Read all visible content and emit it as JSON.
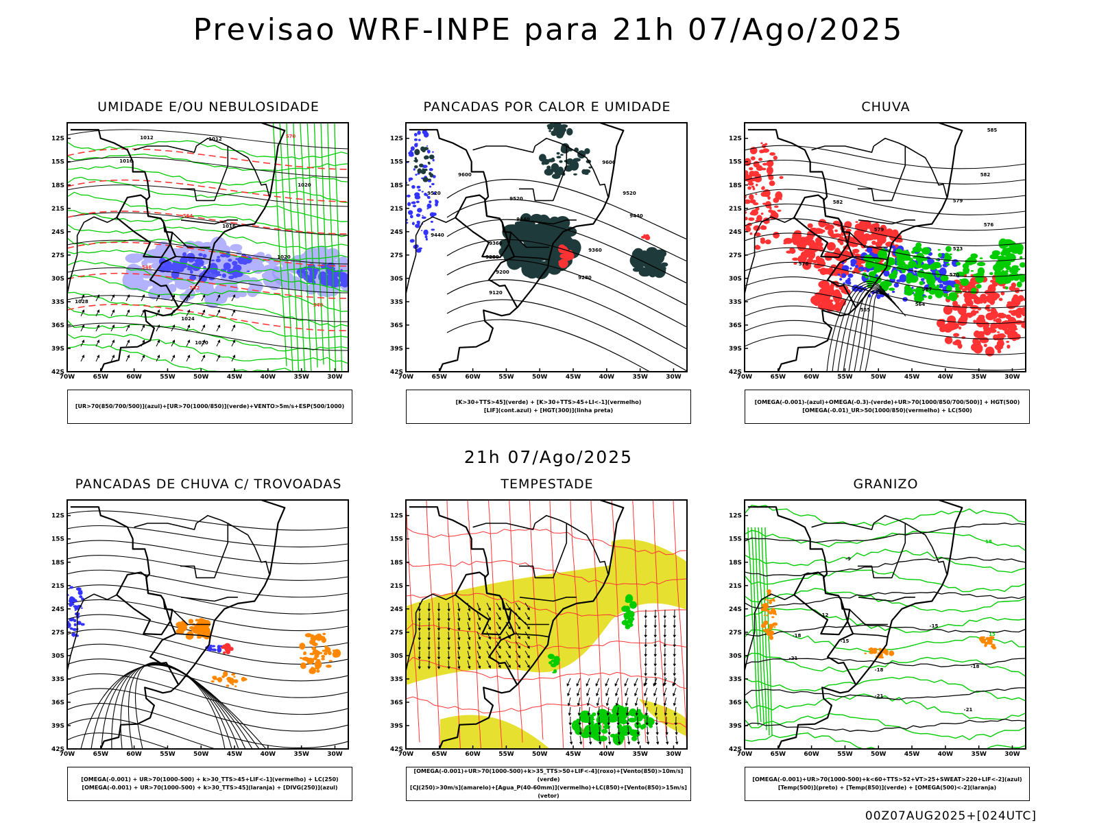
{
  "title": "Previsao WRF-INPE  para 21h 07/Ago/2025",
  "mid_title": "21h 07/Ago/2025",
  "footer": "00Z07AUG2025+[024UTC]",
  "axes": {
    "lat_labels": [
      "12S",
      "15S",
      "18S",
      "21S",
      "24S",
      "27S",
      "30S",
      "33S",
      "36S",
      "39S",
      "42S"
    ],
    "lon_labels": [
      "70W",
      "65W",
      "60W",
      "55W",
      "50W",
      "45W",
      "40W",
      "35W",
      "30W"
    ]
  },
  "colors": {
    "green": "#00cc00",
    "blue": "#3333ff",
    "light_blue": "#9999ff",
    "red": "#ff3333",
    "dark_teal": "#1e3a3a",
    "orange": "#ff8800",
    "yellow": "#e6e030",
    "black": "#000000"
  },
  "panels": [
    {
      "title": "UMIDADE E/OU NEBULOSIDADE",
      "legend": [
        "[UR>70(850/700/500)](azul)+[UR>70(1000/850)](verde)+VENTO>5m/s+ESP(500/1000)"
      ],
      "contour_labels": [
        {
          "text": "1012",
          "color": "#000"
        },
        {
          "text": "1012",
          "color": "#000"
        },
        {
          "text": "1016",
          "color": "#000"
        },
        {
          "text": "1020",
          "color": "#000"
        },
        {
          "text": "1016",
          "color": "#000"
        },
        {
          "text": "1020",
          "color": "#000"
        },
        {
          "text": "1024",
          "color": "#000"
        },
        {
          "text": "1028",
          "color": "#000"
        },
        {
          "text": "1020",
          "color": "#000"
        },
        {
          "text": "570",
          "color": "#ff3333"
        },
        {
          "text": "564",
          "color": "#ff3333"
        },
        {
          "text": "546",
          "color": "#ff3333"
        },
        {
          "text": "552",
          "color": "#ff3333"
        },
        {
          "text": "540",
          "color": "#ff3333"
        }
      ]
    },
    {
      "title": "PANCADAS POR CALOR E UMIDADE",
      "legend": [
        "[K>30+TTS>45](verde) + [K>30+TTS>45+LI<-1](vermelho)",
        "[LIF](cont.azul) + [HGT(300)](linha preta)"
      ],
      "contour_labels": [
        {
          "text": "9600",
          "color": "#000"
        },
        {
          "text": "9600",
          "color": "#000"
        },
        {
          "text": "9520",
          "color": "#000"
        },
        {
          "text": "9520",
          "color": "#000"
        },
        {
          "text": "9440",
          "color": "#000"
        },
        {
          "text": "9440",
          "color": "#000"
        },
        {
          "text": "9360",
          "color": "#000"
        },
        {
          "text": "9280",
          "color": "#000"
        },
        {
          "text": "9200",
          "color": "#000"
        },
        {
          "text": "9120",
          "color": "#000"
        },
        {
          "text": "9360",
          "color": "#000"
        },
        {
          "text": "9280",
          "color": "#000"
        },
        {
          "text": "9520",
          "color": "#000"
        },
        {
          "text": "9440",
          "color": "#000"
        }
      ]
    },
    {
      "title": "CHUVA",
      "legend": [
        "[OMEGA(-0.001)-(azul)+OMEGA(-0.3)-(verde)+UR>70(1000/850/700/500)] + HGT(500)",
        "[OMEGA(-0.01)_UR>50(1000/850)(vermelho) + LC(500)"
      ],
      "contour_labels": [
        {
          "text": "585",
          "color": "#000"
        },
        {
          "text": "582",
          "color": "#000"
        },
        {
          "text": "579",
          "color": "#000"
        },
        {
          "text": "576",
          "color": "#000"
        },
        {
          "text": "573",
          "color": "#000"
        },
        {
          "text": "570",
          "color": "#000"
        },
        {
          "text": "567",
          "color": "#000"
        },
        {
          "text": "564",
          "color": "#000"
        },
        {
          "text": "555",
          "color": "#000"
        },
        {
          "text": "582",
          "color": "#000"
        },
        {
          "text": "579",
          "color": "#000"
        },
        {
          "text": "576",
          "color": "#000"
        }
      ]
    },
    {
      "title": "PANCADAS DE CHUVA C/ TROVOADAS",
      "legend": [
        "[OMEGA(-0.001) + UR>70(1000-500) + k>30_TTS>45+LIF<-1](vermelho) + LC(250)",
        "[OMEGA(-0.001) + UR>70(1000-500) + k>30_TTS>45](laranja) + [DIVG(250)](azul)"
      ],
      "contour_labels": []
    },
    {
      "title": "TEMPESTADE",
      "legend": [
        "[OMEGA(-0.001)+UR>70(1000-500)+k>35_TTS>50+LIF<-4](roxo)+[Vento(850)>10m/s](verde)",
        "[CJ(250)>30m/s](amarelo)+[Agua_P(40-60mm)](vermelho)+LC(850)+[Vento(850)>15m/s](vetor)"
      ],
      "contour_labels": []
    },
    {
      "title": "GRANIZO",
      "legend": [
        "[OMEGA(-0.001)+UR>70(1000-500)+k<60+TTS>52+VT>25+SWEAT>220+LIF<-2](azul)",
        "[Temp(500)](preto) + [Temp(850)](verde) + [OMEGA(500)<-2](laranja)"
      ],
      "contour_labels": [
        {
          "text": "-9",
          "color": "#000"
        },
        {
          "text": "-12",
          "color": "#000"
        },
        {
          "text": "-15",
          "color": "#000"
        },
        {
          "text": "-18",
          "color": "#000"
        },
        {
          "text": "-21",
          "color": "#000"
        },
        {
          "text": "-18",
          "color": "#000"
        },
        {
          "text": "-21",
          "color": "#000"
        },
        {
          "text": "-21",
          "color": "#000"
        },
        {
          "text": "15",
          "color": "#00cc00"
        },
        {
          "text": "18",
          "color": "#00cc00"
        },
        {
          "text": "-15",
          "color": "#000"
        },
        {
          "text": "-18",
          "color": "#000"
        }
      ]
    }
  ]
}
